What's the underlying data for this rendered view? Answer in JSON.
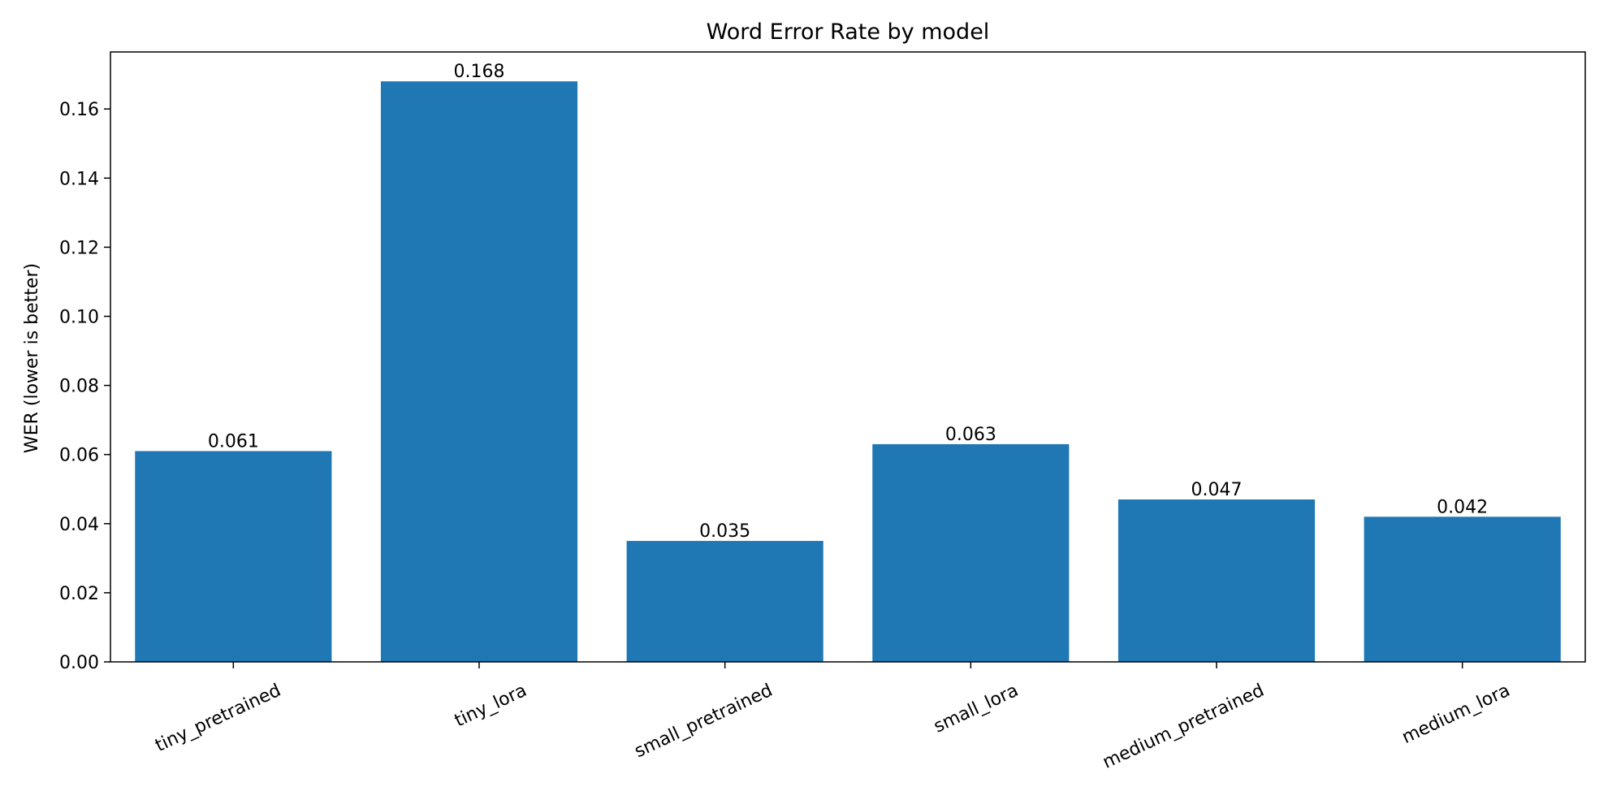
{
  "chart_data": {
    "type": "bar",
    "title": "Word Error Rate by model",
    "xlabel": "",
    "ylabel": "WER (lower is better)",
    "categories": [
      "tiny_pretrained",
      "tiny_lora",
      "small_pretrained",
      "small_lora",
      "medium_pretrained",
      "medium_lora"
    ],
    "values": [
      0.061,
      0.168,
      0.035,
      0.063,
      0.047,
      0.042
    ],
    "data_labels": [
      "0.061",
      "0.168",
      "0.035",
      "0.063",
      "0.047",
      "0.042"
    ],
    "ylim": [
      0,
      0.1765
    ],
    "yticks": [
      "0.00",
      "0.02",
      "0.04",
      "0.06",
      "0.08",
      "0.10",
      "0.12",
      "0.14",
      "0.16"
    ],
    "ytick_values": [
      0,
      0.02,
      0.04,
      0.06,
      0.08,
      0.1,
      0.12,
      0.14,
      0.16
    ],
    "grid": false,
    "legend": "none",
    "bar_color": "#1f77b4",
    "xtick_rotation": "30deg"
  }
}
